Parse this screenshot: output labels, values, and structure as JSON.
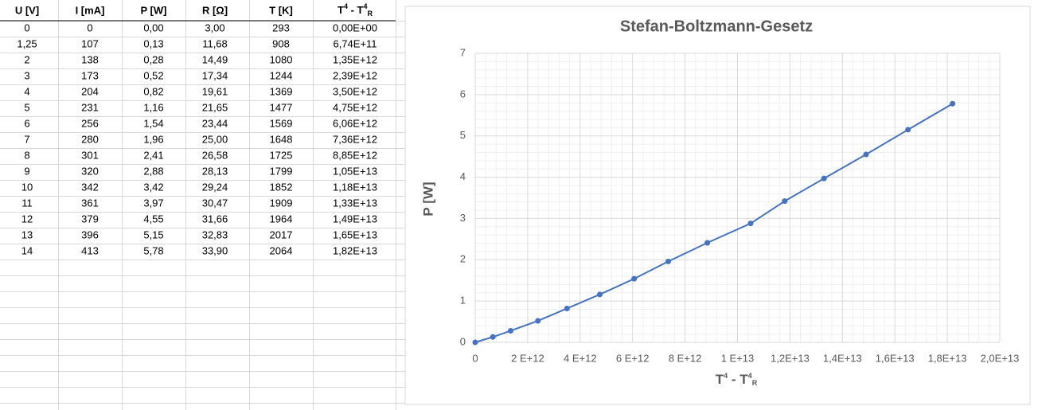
{
  "table": {
    "headers": [
      "U [V]",
      "I [mA]",
      "P [W]",
      "R [Ω]",
      "T [K]",
      [
        "T",
        "4",
        " - T",
        "4",
        "R"
      ]
    ],
    "rows": [
      [
        "0",
        "0",
        "0,00",
        "3,00",
        "293",
        "0,00E+00"
      ],
      [
        "1,25",
        "107",
        "0,13",
        "11,68",
        "908",
        "6,74E+11"
      ],
      [
        "2",
        "138",
        "0,28",
        "14,49",
        "1080",
        "1,35E+12"
      ],
      [
        "3",
        "173",
        "0,52",
        "17,34",
        "1244",
        "2,39E+12"
      ],
      [
        "4",
        "204",
        "0,82",
        "19,61",
        "1369",
        "3,50E+12"
      ],
      [
        "5",
        "231",
        "1,16",
        "21,65",
        "1477",
        "4,75E+12"
      ],
      [
        "6",
        "256",
        "1,54",
        "23,44",
        "1569",
        "6,06E+12"
      ],
      [
        "7",
        "280",
        "1,96",
        "25,00",
        "1648",
        "7,36E+12"
      ],
      [
        "8",
        "301",
        "2,41",
        "26,58",
        "1725",
        "8,85E+12"
      ],
      [
        "9",
        "320",
        "2,88",
        "28,13",
        "1799",
        "1,05E+13"
      ],
      [
        "10",
        "342",
        "3,42",
        "29,24",
        "1852",
        "1,18E+13"
      ],
      [
        "11",
        "361",
        "3,97",
        "30,47",
        "1909",
        "1,33E+13"
      ],
      [
        "12",
        "379",
        "4,55",
        "31,66",
        "1964",
        "1,49E+13"
      ],
      [
        "13",
        "396",
        "5,15",
        "32,83",
        "2017",
        "1,65E+13"
      ],
      [
        "14",
        "413",
        "5,78",
        "33,90",
        "2064",
        "1,82E+13"
      ]
    ]
  },
  "chart_data": {
    "type": "line",
    "title": "Stefan-Boltzmann-Gesetz",
    "x_label": [
      "T",
      "4",
      " - T",
      "4",
      "R"
    ],
    "y_label": "P [W]",
    "x": [
      0,
      674000000000,
      1350000000000,
      2390000000000,
      3500000000000,
      4750000000000,
      6060000000000,
      7360000000000,
      8850000000000,
      10500000000000,
      11800000000000,
      13300000000000,
      14900000000000,
      16500000000000,
      18200000000000
    ],
    "series": [
      {
        "name": "P [W]",
        "color": "#4472c4",
        "values": [
          0,
          0.13,
          0.28,
          0.52,
          0.82,
          1.16,
          1.54,
          1.96,
          2.41,
          2.88,
          3.42,
          3.97,
          4.55,
          5.15,
          5.78
        ]
      }
    ],
    "xlim": [
      0,
      20000000000000
    ],
    "ylim": [
      0,
      7
    ],
    "xticks": [
      0,
      {
        "value": 2000000000000,
        "label": "2 E+12"
      },
      {
        "value": 4000000000000,
        "label": "4 E+12"
      },
      {
        "value": 6000000000000,
        "label": "6 E+12"
      },
      {
        "value": 8000000000000,
        "label": "8 E+12"
      },
      {
        "value": 10000000000000,
        "label": "1 E+13"
      },
      {
        "value": 12000000000000,
        "label": "1,2E+13"
      },
      {
        "value": 14000000000000,
        "label": "1,4E+13"
      },
      {
        "value": 16000000000000,
        "label": "1,6E+13"
      },
      {
        "value": 18000000000000,
        "label": "1,8E+13"
      },
      {
        "value": 20000000000000,
        "label": "2,0E+13"
      }
    ],
    "yticks": [
      0,
      1,
      2,
      3,
      4,
      5,
      6,
      7
    ],
    "grid": true,
    "minor_grid": true
  }
}
